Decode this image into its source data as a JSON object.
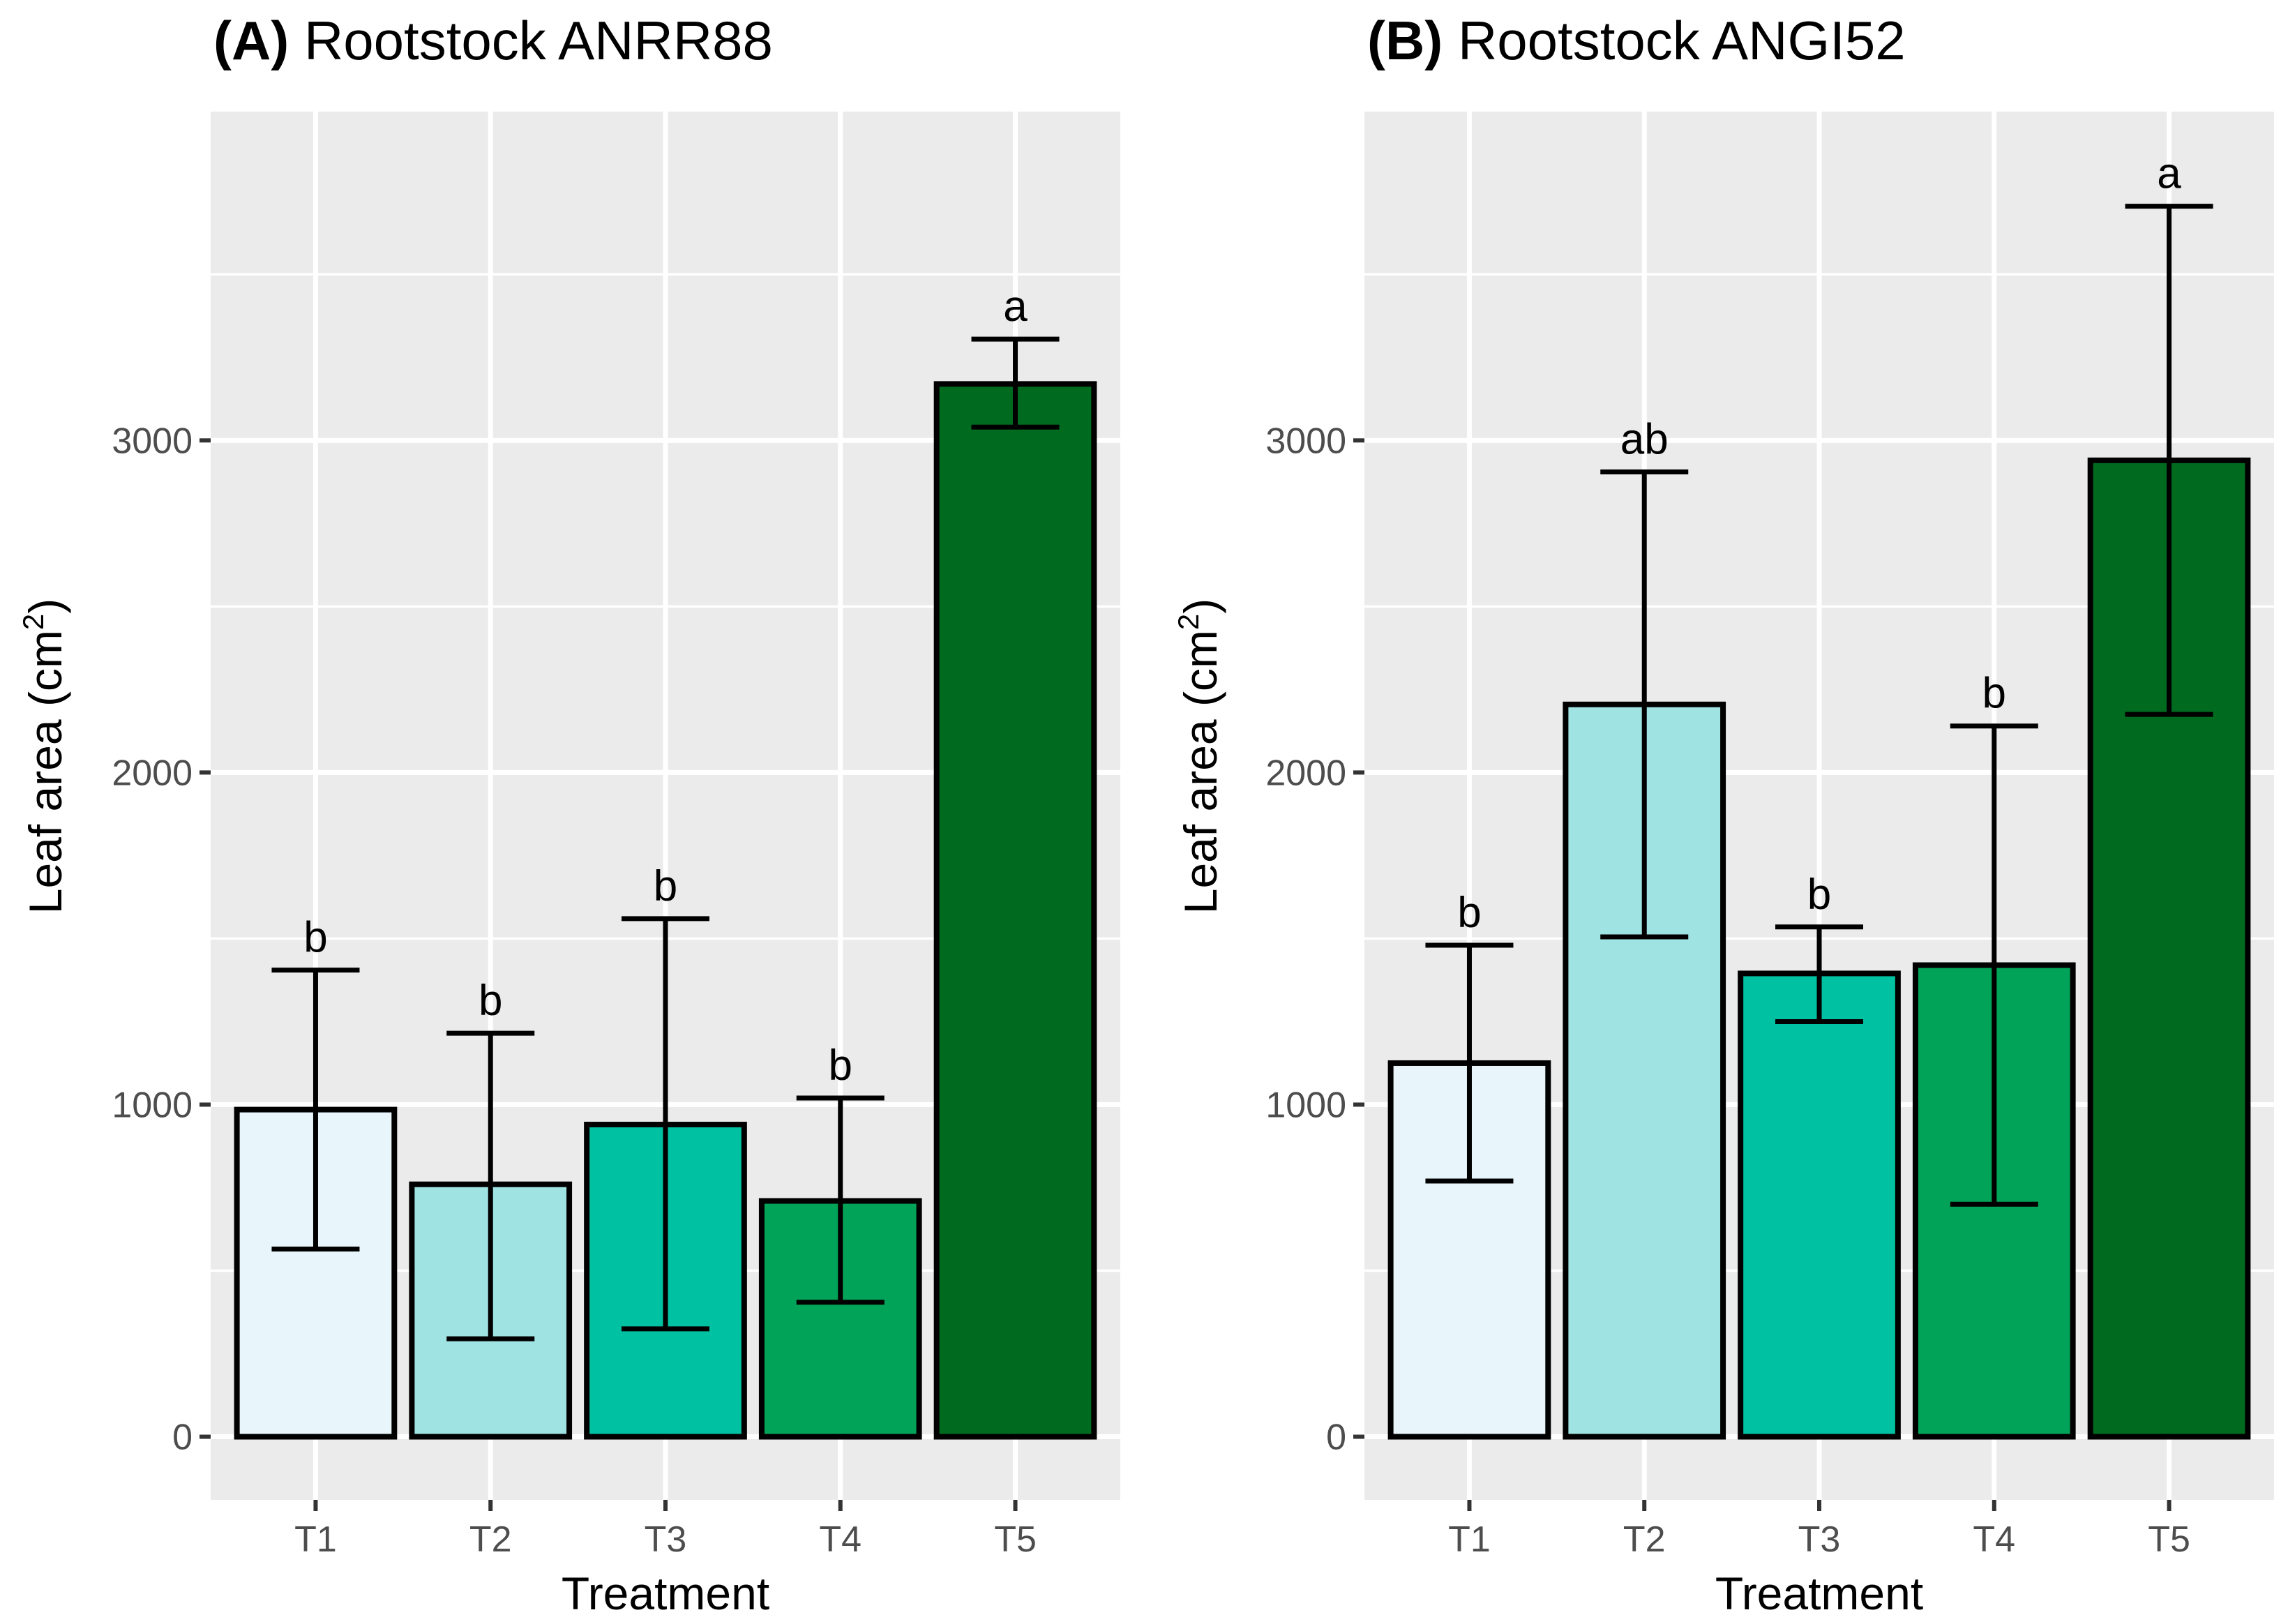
{
  "chart_data": [
    {
      "type": "bar",
      "title_tag": "(A)",
      "title_text": "Rootstock ANRR88",
      "xlabel": "Treatment",
      "ylabel": "Leaf area (cm",
      "ylabel_sup": "2",
      "ylabel_close": ")",
      "categories": [
        "T1",
        "T2",
        "T3",
        "T4",
        "T5"
      ],
      "values": [
        985,
        760,
        940,
        710,
        3170
      ],
      "error_low": [
        565,
        295,
        325,
        405,
        3040
      ],
      "error_high": [
        1405,
        1215,
        1560,
        1020,
        3305
      ],
      "significance": [
        "b",
        "b",
        "b",
        "b",
        "a"
      ],
      "colors": [
        "#e8f6fb",
        "#9fe3e3",
        "#00c1a1",
        "#00a357",
        "#006a1f"
      ],
      "ylim": [
        -190,
        3990
      ],
      "yticks": [
        0,
        1000,
        2000,
        3000
      ],
      "ytick_labels": [
        "0",
        "1000",
        "2000",
        "3000"
      ],
      "grid": true
    },
    {
      "type": "bar",
      "title_tag": "(B)",
      "title_text": "Rootstock ANGI52",
      "xlabel": "Treatment",
      "ylabel": "Leaf area (cm",
      "ylabel_sup": "2",
      "ylabel_close": ")",
      "categories": [
        "T1",
        "T2",
        "T3",
        "T4",
        "T5"
      ],
      "values": [
        1125,
        2205,
        1395,
        1420,
        2940
      ],
      "error_low": [
        770,
        1505,
        1250,
        700,
        2175
      ],
      "error_high": [
        1480,
        2905,
        1535,
        2140,
        3705
      ],
      "significance": [
        "b",
        "ab",
        "b",
        "b",
        "a"
      ],
      "colors": [
        "#e8f6fb",
        "#9fe3e3",
        "#00c1a1",
        "#00a357",
        "#006a1f"
      ],
      "ylim": [
        -190,
        3990
      ],
      "yticks": [
        0,
        1000,
        2000,
        3000
      ],
      "ytick_labels": [
        "0",
        "1000",
        "2000",
        "3000"
      ],
      "grid": true
    }
  ]
}
